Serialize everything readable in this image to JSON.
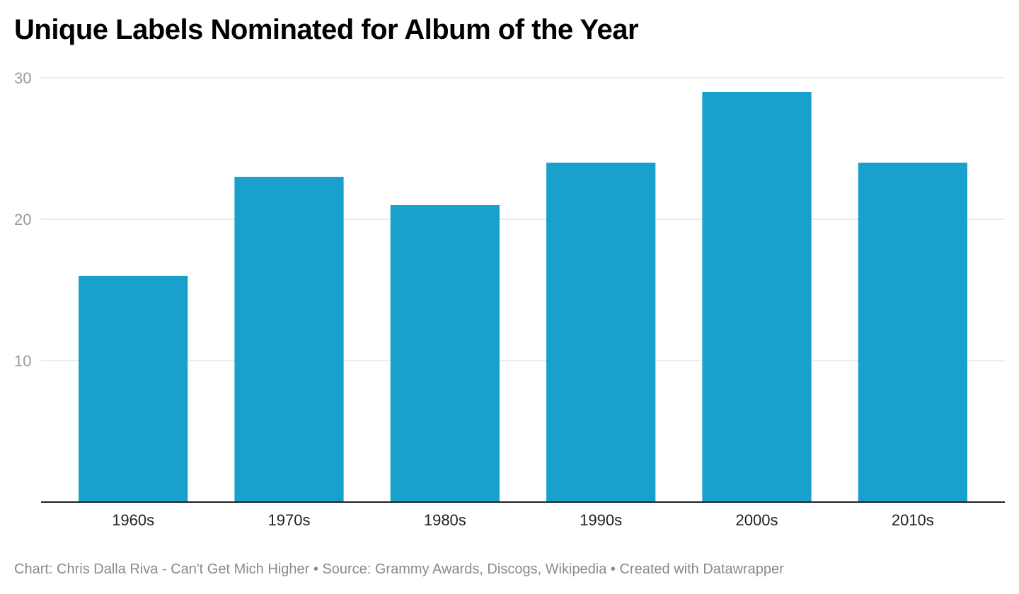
{
  "title": "Unique Labels Nominated for Album of the Year",
  "footer": "Chart: Chris Dalla Riva - Can't Get Mich Higher • Source: Grammy Awards, Discogs, Wikipedia • Created with Datawrapper",
  "colors": {
    "bar": "#1aa0cd",
    "grid": "#e5e5e5",
    "axis": "#222222"
  },
  "chart_data": {
    "type": "bar",
    "categories": [
      "1960s",
      "1970s",
      "1980s",
      "1990s",
      "2000s",
      "2010s"
    ],
    "values": [
      16,
      23,
      21,
      24,
      29,
      24
    ],
    "ylim": [
      0,
      30
    ],
    "yticks": [
      10,
      20,
      30
    ],
    "xlabel": "",
    "ylabel": "",
    "grid": true,
    "legend": "none"
  }
}
